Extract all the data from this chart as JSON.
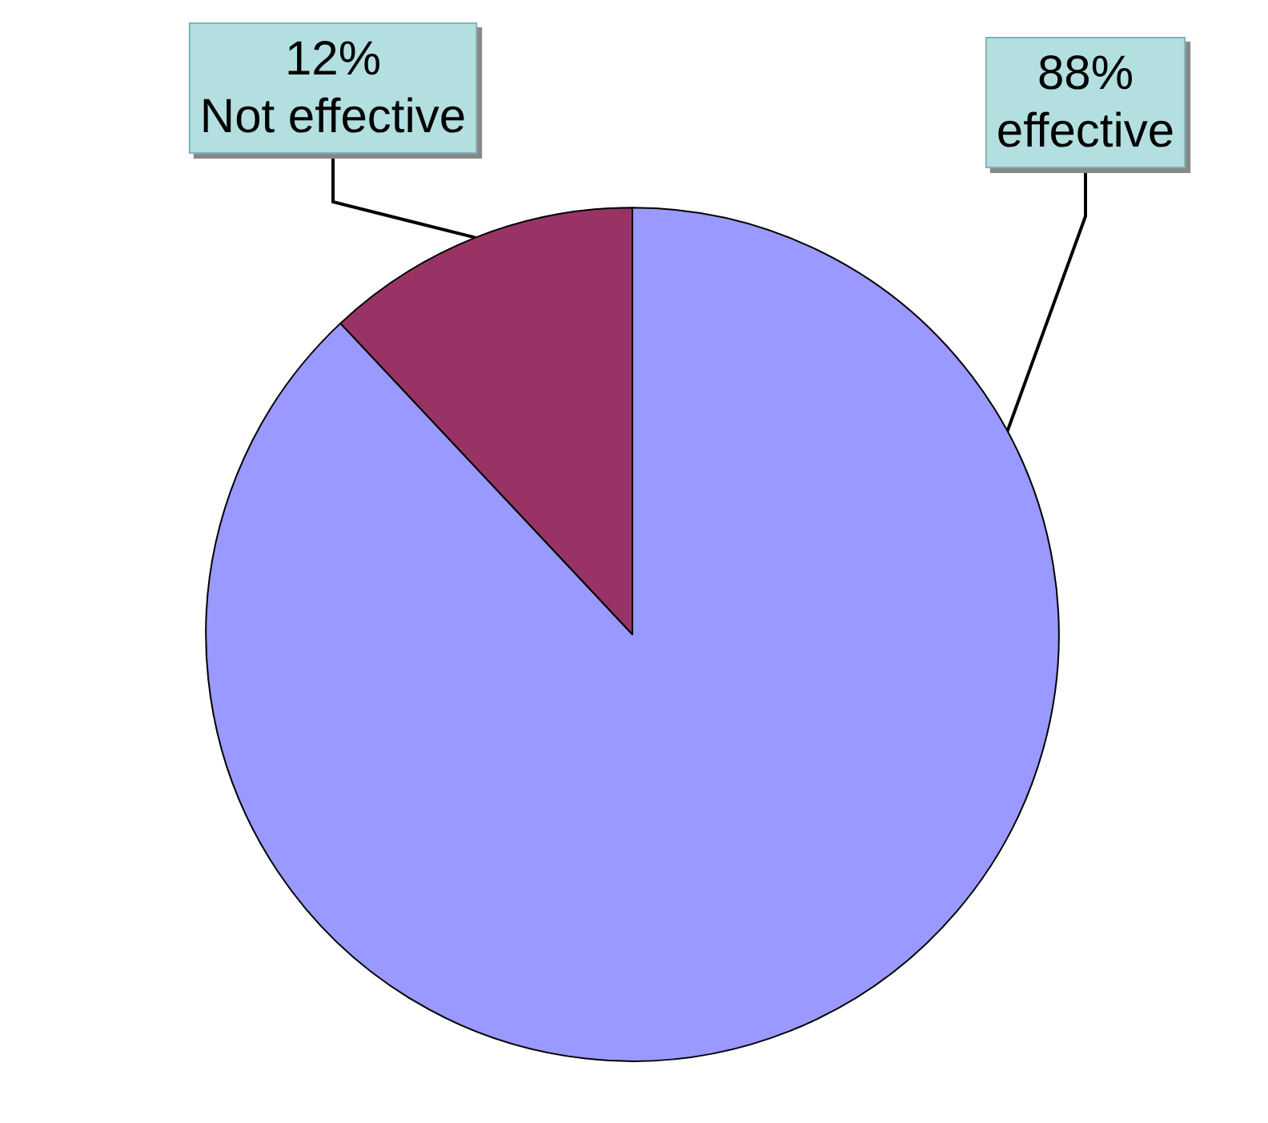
{
  "chart_data": {
    "type": "pie",
    "categories": [
      "effective",
      "Not effective"
    ],
    "values": [
      88,
      12
    ],
    "colors": [
      "#9999ff",
      "#993366"
    ],
    "value_labels": [
      "88%",
      "12%"
    ]
  }
}
